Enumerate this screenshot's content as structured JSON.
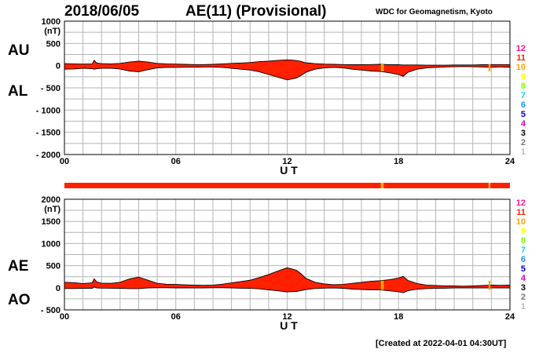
{
  "header": {
    "date": "2018/06/05",
    "index_title": "AE(11) (Provisional)",
    "source": "WDC for Geomagnetism, Kyoto"
  },
  "footer": {
    "created": "[Created at 2022-04-01 04:30UT]"
  },
  "colors": {
    "fill": "#ff2000",
    "grid": "#b4b4b4",
    "legend": {
      "12": "#ff1493",
      "11": "#ff2000",
      "10": "#ffa500",
      "9": "#ffff00",
      "8": "#7fff00",
      "7": "#00dddd",
      "6": "#1e90ff",
      "5": "#0000cd",
      "4": "#cc00cc",
      "3": "#000000",
      "2": "#777777",
      "1": "#bbbbbb"
    }
  },
  "station_count_legend": [
    "12",
    "11",
    "10",
    "9",
    "8",
    "7",
    "6",
    "5",
    "4",
    "3",
    "2",
    "1"
  ],
  "chart_data": [
    {
      "type": "area",
      "series_labels": [
        "AU",
        "AL"
      ],
      "unit": "(nT)",
      "xlabel": "U T",
      "xticks": [
        "00",
        "06",
        "12",
        "18",
        "24"
      ],
      "xlim": [
        0,
        24
      ],
      "ylim": [
        -2000,
        1000
      ],
      "yticks": [
        1000,
        500,
        0,
        -500,
        -1000,
        -1500,
        -2000
      ],
      "ytick_labels": [
        "1000",
        "500",
        "0",
        "- 500",
        "- 1000",
        "- 1500",
        "- 2000"
      ],
      "grid": true,
      "x": [
        0,
        0.5,
        1,
        1.5,
        1.6,
        1.75,
        2,
        2.5,
        3,
        3.5,
        4,
        4.5,
        5,
        5.5,
        6,
        6.5,
        7,
        7.5,
        8,
        8.5,
        9,
        9.5,
        10,
        10.5,
        11,
        11.5,
        12,
        12.25,
        12.5,
        12.75,
        13,
        13.5,
        14,
        14.5,
        15,
        15.5,
        16,
        16.5,
        17,
        17.5,
        18,
        18.25,
        18.5,
        19,
        19.5,
        20,
        20.5,
        21,
        21.5,
        22,
        22.5,
        23,
        23.5,
        24
      ],
      "au": [
        45,
        40,
        35,
        40,
        120,
        60,
        45,
        40,
        50,
        80,
        100,
        80,
        50,
        40,
        35,
        30,
        25,
        25,
        30,
        40,
        50,
        60,
        70,
        90,
        100,
        120,
        130,
        125,
        115,
        95,
        65,
        45,
        35,
        30,
        25,
        20,
        20,
        25,
        30,
        20,
        20,
        15,
        15,
        15,
        10,
        10,
        10,
        15,
        15,
        15,
        20,
        25,
        25,
        25
      ],
      "al": [
        -80,
        -75,
        -60,
        -70,
        -80,
        -70,
        -60,
        -60,
        -75,
        -120,
        -140,
        -90,
        -50,
        -40,
        -40,
        -35,
        -35,
        -30,
        -30,
        -40,
        -60,
        -80,
        -100,
        -140,
        -200,
        -260,
        -320,
        -300,
        -280,
        -220,
        -150,
        -80,
        -50,
        -40,
        -50,
        -80,
        -100,
        -120,
        -130,
        -160,
        -200,
        -240,
        -150,
        -80,
        -50,
        -40,
        -30,
        -25,
        -20,
        -25,
        -30,
        -35,
        -30,
        -35
      ],
      "station_bar": [
        {
          "from": 0,
          "to": 17.05,
          "count": "11"
        },
        {
          "from": 17.05,
          "to": 17.2,
          "count": "10"
        },
        {
          "from": 17.2,
          "to": 22.85,
          "count": "11"
        },
        {
          "from": 22.85,
          "to": 22.95,
          "count": "10"
        },
        {
          "from": 22.95,
          "to": 24,
          "count": "11"
        }
      ]
    },
    {
      "type": "area",
      "series_labels": [
        "AE",
        "AO"
      ],
      "unit": "(nT)",
      "xlabel": "U T",
      "xticks": [
        "00",
        "06",
        "12",
        "18",
        "24"
      ],
      "xlim": [
        0,
        24
      ],
      "ylim": [
        -500,
        2000
      ],
      "yticks": [
        2000,
        1500,
        1000,
        500,
        0,
        -500
      ],
      "ytick_labels": [
        "2000",
        "1500",
        "1000",
        "500",
        "0",
        "- 500"
      ],
      "grid": true,
      "x": [
        0,
        0.5,
        1,
        1.5,
        1.6,
        1.75,
        2,
        2.5,
        3,
        3.5,
        4,
        4.5,
        5,
        5.5,
        6,
        6.5,
        7,
        7.5,
        8,
        8.5,
        9,
        9.5,
        10,
        10.5,
        11,
        11.5,
        12,
        12.25,
        12.5,
        12.75,
        13,
        13.5,
        14,
        14.5,
        15,
        15.5,
        16,
        16.5,
        17,
        17.5,
        18,
        18.25,
        18.5,
        19,
        19.5,
        20,
        20.5,
        21,
        21.5,
        22,
        22.5,
        23,
        23.5,
        24
      ],
      "ae": [
        125,
        115,
        95,
        110,
        200,
        130,
        105,
        100,
        125,
        200,
        240,
        170,
        100,
        80,
        75,
        65,
        60,
        55,
        60,
        80,
        110,
        140,
        170,
        230,
        300,
        380,
        450,
        425,
        395,
        315,
        215,
        125,
        85,
        70,
        75,
        100,
        120,
        145,
        160,
        180,
        220,
        255,
        165,
        95,
        60,
        50,
        40,
        40,
        35,
        40,
        50,
        60,
        55,
        60
      ],
      "ao": [
        -18,
        -18,
        -13,
        -15,
        20,
        -5,
        -8,
        -10,
        -13,
        -20,
        -20,
        -5,
        0,
        0,
        -3,
        -3,
        -5,
        -3,
        0,
        0,
        -5,
        -10,
        -15,
        -25,
        -50,
        -70,
        -95,
        -88,
        -83,
        -63,
        -43,
        -18,
        -8,
        -5,
        -13,
        -30,
        -40,
        -48,
        -50,
        -70,
        -90,
        -113,
        -68,
        -33,
        -20,
        -15,
        -10,
        -5,
        -3,
        -5,
        -5,
        -5,
        -3,
        -5
      ]
    }
  ]
}
